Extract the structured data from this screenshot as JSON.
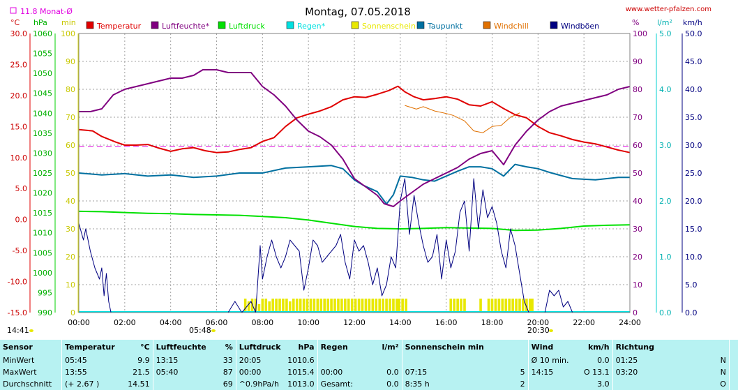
{
  "header": {
    "title": "Montag, 07.05.2018",
    "site": "www.wetter-pfalzen.com",
    "monthly_avg": "11.8 Monat-Ø"
  },
  "unit_labels": {
    "celsius": "°C",
    "hpa": "hPa",
    "minutes": "min",
    "percent": "%",
    "rain": "l/m²",
    "speed": "km/h"
  },
  "chart_data": {
    "type": "line",
    "x_axis": {
      "range": [
        "00:00",
        "24:00"
      ],
      "ticks": [
        "00:00",
        "02:00",
        "04:00",
        "06:00",
        "08:00",
        "10:00",
        "12:00",
        "14:00",
        "16:00",
        "18:00",
        "20:00",
        "22:00",
        "24:00"
      ]
    },
    "axes": {
      "temperature": {
        "unit": "°C",
        "ylim": [
          -15,
          30
        ],
        "ticks": [
          "30.0",
          "25.0",
          "20.0",
          "15.0",
          "10.0",
          "5.0",
          "0.0",
          "-5.0",
          "-10.0",
          "-15.0"
        ]
      },
      "pressure": {
        "unit": "hPa",
        "ylim": [
          990,
          1060
        ],
        "ticks": [
          "1060",
          "1055",
          "1050",
          "1045",
          "1040",
          "1035",
          "1030",
          "1025",
          "1020",
          "1015",
          "1010",
          "1005",
          "1000",
          "995",
          "990"
        ]
      },
      "sunshine": {
        "unit": "min",
        "ylim": [
          0,
          100
        ],
        "ticks": [
          "100",
          "90",
          "80",
          "70",
          "60",
          "50",
          "40",
          "30",
          "20",
          "10",
          "0"
        ]
      },
      "humidity": {
        "unit": "%",
        "ylim": [
          0,
          100
        ],
        "ticks": [
          "100",
          "90",
          "80",
          "70",
          "60",
          "50",
          "40",
          "30",
          "20",
          "10",
          "0"
        ]
      },
      "rain": {
        "unit": "l/m²",
        "ylim": [
          0,
          5
        ],
        "ticks": [
          "5.0",
          "4.0",
          "3.0",
          "2.0",
          "1.0",
          "0.0"
        ]
      },
      "wind": {
        "unit": "km/h",
        "ylim": [
          0,
          50
        ],
        "ticks": [
          "50.0",
          "45.0",
          "40.0",
          "35.0",
          "30.0",
          "25.0",
          "20.0",
          "15.0",
          "10.0",
          "5.0",
          "0.0"
        ]
      }
    },
    "grid": true,
    "legend_placement": "top",
    "legend": [
      {
        "label": "Temperatur",
        "color": "#e00000"
      },
      {
        "label": "Luftfeuchte*",
        "color": "#800080"
      },
      {
        "label": "Luftdruck",
        "color": "#00e000"
      },
      {
        "label": "Regen*",
        "color": "#00e0e0"
      },
      {
        "label": "Sonnenschein",
        "color": "#e8e800"
      },
      {
        "label": "Taupunkt",
        "color": "#0070a0"
      },
      {
        "label": "Windchill",
        "color": "#e07000"
      },
      {
        "label": "Windböen",
        "color": "#000080"
      }
    ],
    "monthly_avg_temperature": 11.8,
    "series": [
      {
        "name": "Temperatur",
        "axis": "temperature",
        "color": "#e00000",
        "x": [
          0,
          0.6,
          1,
          1.6,
          2,
          2.5,
          3,
          3.5,
          4,
          4.5,
          5,
          5.5,
          6,
          6.5,
          7,
          7.5,
          8,
          8.5,
          9,
          9.5,
          10,
          10.5,
          11,
          11.5,
          12,
          12.5,
          13,
          13.5,
          13.9,
          14.2,
          14.6,
          15,
          15.5,
          16,
          16.5,
          17,
          17.5,
          18,
          18.5,
          19,
          19.5,
          20,
          20.5,
          21,
          21.5,
          22,
          22.5,
          23,
          23.5,
          24
        ],
        "values": [
          14.5,
          14.3,
          13.4,
          12.5,
          12.0,
          12.0,
          12.1,
          11.5,
          11.0,
          11.4,
          11.6,
          11.1,
          10.8,
          10.9,
          11.3,
          11.6,
          12.6,
          13.2,
          15.0,
          16.4,
          17.0,
          17.5,
          18.2,
          19.3,
          19.8,
          19.7,
          20.2,
          20.8,
          21.5,
          20.6,
          19.8,
          19.3,
          19.5,
          19.8,
          19.4,
          18.5,
          18.3,
          19.0,
          17.9,
          16.9,
          16.4,
          15.0,
          14.0,
          13.5,
          12.9,
          12.5,
          12.2,
          11.7,
          11.2,
          10.8
        ]
      },
      {
        "name": "Luftfeuchte*",
        "axis": "humidity",
        "color": "#800080",
        "x": [
          0,
          0.5,
          1,
          1.5,
          2,
          2.5,
          3,
          3.5,
          4,
          4.5,
          5,
          5.4,
          6,
          6.5,
          7,
          7.5,
          8,
          8.5,
          9,
          9.5,
          10,
          10.5,
          11,
          11.5,
          12,
          12.5,
          13,
          13.3,
          13.7,
          14,
          14.5,
          15,
          15.5,
          16,
          16.5,
          17,
          17.5,
          18,
          18.3,
          18.5,
          19,
          19.5,
          20,
          20.5,
          21,
          21.5,
          22,
          22.5,
          23,
          23.5,
          24
        ],
        "values": [
          72,
          72,
          73,
          78,
          80,
          81,
          82,
          83,
          84,
          84,
          85,
          87,
          87,
          86,
          86,
          86,
          81,
          78,
          74,
          69,
          65,
          63,
          60,
          55,
          48,
          45,
          42,
          39,
          38,
          40,
          43,
          46,
          48,
          50,
          52,
          55,
          57,
          58,
          55,
          53,
          60,
          65,
          69,
          72,
          74,
          75,
          76,
          77,
          78,
          80,
          81
        ]
      },
      {
        "name": "Luftdruck",
        "axis": "pressure",
        "color": "#00e000",
        "x": [
          0,
          1,
          2,
          3,
          4,
          5,
          6,
          7,
          8,
          9,
          10,
          11,
          12,
          13,
          14,
          15,
          16,
          17,
          18,
          19,
          20,
          21,
          22,
          23,
          24
        ],
        "values": [
          1015.4,
          1015.3,
          1015.1,
          1014.9,
          1014.8,
          1014.6,
          1014.5,
          1014.4,
          1014.1,
          1013.8,
          1013.2,
          1012.4,
          1011.6,
          1011.1,
          1011.0,
          1011.1,
          1011.3,
          1011.2,
          1011.1,
          1010.6,
          1010.7,
          1011.1,
          1011.7,
          1011.9,
          1012.0
        ]
      },
      {
        "name": "Taupunkt",
        "axis": "temperature",
        "color": "#0070a0",
        "x": [
          0,
          1,
          2,
          3,
          4,
          5,
          6,
          7,
          8,
          9,
          10,
          11,
          11.5,
          12,
          12.4,
          13,
          13.4,
          13.7,
          14,
          14.5,
          15,
          15.5,
          16,
          16.5,
          17,
          17.5,
          18,
          18.5,
          19,
          19.5,
          20,
          20.5,
          21,
          21.5,
          22,
          22.5,
          23,
          23.5,
          24
        ],
        "values": [
          7.5,
          7.2,
          7.4,
          7.0,
          7.2,
          6.8,
          7.0,
          7.5,
          7.5,
          8.3,
          8.5,
          8.7,
          8.2,
          6.4,
          5.5,
          4.5,
          2.5,
          4.0,
          7.0,
          6.8,
          6.4,
          6.2,
          7.0,
          7.8,
          8.5,
          8.5,
          8.2,
          7.0,
          8.9,
          8.5,
          8.2,
          7.6,
          7.1,
          6.6,
          6.5,
          6.4,
          6.6,
          6.8,
          6.8
        ]
      },
      {
        "name": "Windchill",
        "axis": "temperature",
        "color": "#e07000",
        "x": [
          14.2,
          14.7,
          15,
          15.5,
          16,
          16.3,
          16.8,
          17.2,
          17.6,
          18,
          18.4,
          18.8,
          19.2
        ],
        "values": [
          18.4,
          17.8,
          18.2,
          17.5,
          17.1,
          16.8,
          15.9,
          14.3,
          14.0,
          15.0,
          15.2,
          16.5,
          17.2
        ]
      },
      {
        "name": "Windböen",
        "axis": "wind",
        "color": "#000080",
        "x": [
          0,
          0.2,
          0.3,
          0.5,
          0.7,
          0.9,
          1.0,
          1.1,
          1.2,
          1.3,
          1.4,
          1.5,
          6.5,
          6.8,
          7.1,
          7.3,
          7.5,
          7.7,
          7.9,
          8.0,
          8.2,
          8.4,
          8.6,
          8.8,
          9.0,
          9.2,
          9.4,
          9.6,
          9.8,
          10.0,
          10.2,
          10.4,
          10.6,
          10.8,
          11.0,
          11.2,
          11.4,
          11.6,
          11.8,
          12.0,
          12.2,
          12.4,
          12.6,
          12.8,
          13.0,
          13.2,
          13.4,
          13.6,
          13.8,
          14.0,
          14.2,
          14.4,
          14.6,
          14.8,
          15.0,
          15.2,
          15.4,
          15.6,
          15.8,
          16.0,
          16.2,
          16.4,
          16.6,
          16.8,
          17.0,
          17.2,
          17.4,
          17.6,
          17.8,
          18.0,
          18.2,
          18.4,
          18.6,
          18.8,
          19.0,
          19.2,
          19.4,
          19.6,
          20.3,
          20.5,
          20.7,
          20.9,
          21.1,
          21.3,
          21.5
        ],
        "values": [
          16,
          13,
          15,
          11,
          8,
          6,
          8,
          3,
          7,
          2,
          0,
          0,
          0,
          2,
          0,
          1,
          2,
          0,
          12,
          6,
          10,
          13,
          10,
          8,
          10,
          13,
          12,
          11,
          4,
          8,
          13,
          12,
          9,
          10,
          11,
          12,
          14,
          9,
          6,
          13,
          11,
          12,
          9,
          5,
          8,
          3,
          5,
          10,
          8,
          20,
          24,
          14,
          21,
          16,
          12,
          9,
          10,
          14,
          6,
          13,
          8,
          11,
          18,
          20,
          11,
          24,
          15,
          22,
          17,
          19,
          16,
          11,
          8,
          15,
          12,
          7,
          2,
          0,
          0,
          4,
          3,
          4,
          1,
          2,
          0
        ]
      }
    ],
    "sunshine_bars": {
      "color": "#e8e800",
      "x": [
        7.25,
        7.4,
        7.55,
        7.7,
        7.85,
        8.0,
        8.15,
        8.3,
        8.45,
        8.6,
        8.75,
        8.9,
        9.05,
        9.2,
        9.35,
        9.5,
        9.65,
        9.8,
        9.95,
        10.1,
        10.25,
        10.4,
        10.55,
        10.7,
        10.85,
        11.0,
        11.15,
        11.3,
        11.45,
        11.6,
        11.75,
        11.9,
        12.05,
        12.2,
        12.35,
        12.5,
        12.65,
        12.8,
        12.95,
        13.1,
        13.25,
        13.4,
        13.55,
        13.7,
        13.85,
        13.95,
        14.1,
        14.25,
        16.2,
        16.35,
        16.5,
        16.65,
        16.8,
        17.5,
        17.85,
        18.0,
        18.15,
        18.3,
        18.45,
        18.6,
        18.75,
        18.9,
        19.05,
        19.2,
        19.35,
        19.5,
        19.65,
        19.75
      ],
      "values": [
        5,
        4,
        5,
        5,
        3,
        5,
        5,
        4,
        5,
        5,
        5,
        5,
        5,
        4,
        5,
        5,
        5,
        5,
        5,
        5,
        5,
        5,
        5,
        5,
        5,
        5,
        5,
        5,
        5,
        5,
        5,
        5,
        5,
        5,
        5,
        5,
        5,
        5,
        5,
        5,
        5,
        5,
        5,
        5,
        5,
        5,
        5,
        5,
        5,
        5,
        5,
        5,
        5,
        5,
        5,
        5,
        5,
        5,
        5,
        5,
        5,
        5,
        5,
        5,
        5,
        5,
        5,
        5
      ]
    },
    "regen_values": [
      0
    ],
    "markers": [
      {
        "label": "14:41",
        "position": "left"
      },
      {
        "label": "05:48",
        "position": "sunrise"
      },
      {
        "label": "20:30",
        "position": "sunset"
      }
    ]
  },
  "table": {
    "headers": [
      "Sensor",
      "Temperatur",
      "°C",
      "Luftfeuchte",
      "%",
      "Luftdruck",
      "hPa",
      "Regen",
      "l/m²",
      "Sonnenschein min",
      "Wind",
      "km/h",
      "Richtung"
    ],
    "rows": [
      [
        "MinWert",
        "05:45",
        "9.9",
        "13:15",
        "33",
        "20:05",
        "1010.6",
        "",
        "",
        "",
        "",
        "Ø 10 min.",
        "0.0",
        "01:25",
        "N"
      ],
      [
        "MaxWert",
        "13:55",
        "21.5",
        "05:40",
        "87",
        "00:00",
        "1015.4",
        "00:00",
        "0.0",
        "07:15",
        "5",
        "14:15",
        "O 13.1",
        "03:20",
        "N"
      ],
      [
        "Durchschnitt",
        "(+ 2.67 )",
        "14.51",
        "",
        "69",
        "^0.9hPa/h",
        "1013.0",
        "Gesamt:",
        "0.0",
        "8:35 h",
        "2",
        "",
        "3.0",
        "",
        "O"
      ]
    ]
  }
}
